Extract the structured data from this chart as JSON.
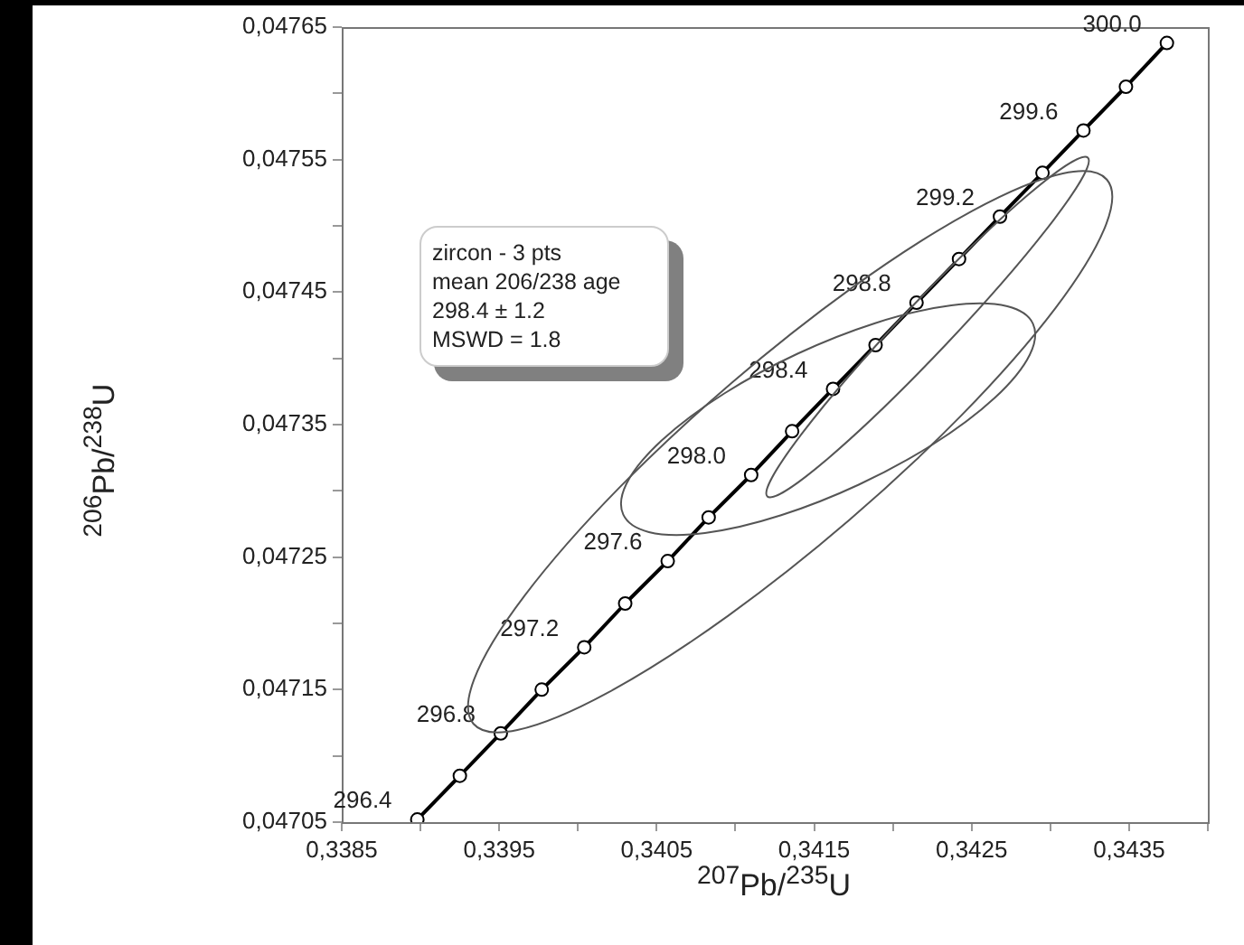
{
  "chart_data": {
    "type": "line",
    "xlabel": "$^{207}$Pb/$^{235}$U",
    "ylabel": "$^{206}$Pb/$^{238}$U",
    "xlim": [
      0.3385,
      0.344
    ],
    "ylim": [
      0.04705,
      0.04765
    ],
    "xticks": [
      {
        "value": 0.3385,
        "label": "0,3385"
      },
      {
        "value": 0.339,
        "label": null
      },
      {
        "value": 0.3395,
        "label": "0,3395"
      },
      {
        "value": 0.34,
        "label": null
      },
      {
        "value": 0.3405,
        "label": "0,3405"
      },
      {
        "value": 0.341,
        "label": null
      },
      {
        "value": 0.3415,
        "label": "0,3415"
      },
      {
        "value": 0.342,
        "label": null
      },
      {
        "value": 0.3425,
        "label": "0,3425"
      },
      {
        "value": 0.343,
        "label": null
      },
      {
        "value": 0.3435,
        "label": "0,3435"
      },
      {
        "value": 0.344,
        "label": null
      }
    ],
    "yticks": [
      {
        "value": 0.04705,
        "label": "0,04705"
      },
      {
        "value": 0.0471,
        "label": null
      },
      {
        "value": 0.04715,
        "label": "0,04715"
      },
      {
        "value": 0.0472,
        "label": null
      },
      {
        "value": 0.04725,
        "label": "0,04725"
      },
      {
        "value": 0.0473,
        "label": null
      },
      {
        "value": 0.04735,
        "label": "0,04735"
      },
      {
        "value": 0.0474,
        "label": null
      },
      {
        "value": 0.04745,
        "label": "0,04745"
      },
      {
        "value": 0.0475,
        "label": null
      },
      {
        "value": 0.04755,
        "label": "0,04755"
      },
      {
        "value": 0.0476,
        "label": null
      },
      {
        "value": 0.04765,
        "label": "0,04765"
      }
    ],
    "grid": false,
    "legend": false,
    "series": [
      {
        "type": "line",
        "color": "#000000",
        "marker": "circle",
        "x": [
          0.33898,
          0.33925,
          0.33951,
          0.33977,
          0.34004,
          0.3403,
          0.34057,
          0.34083,
          0.3411,
          0.34136,
          0.34162,
          0.34189,
          0.34215,
          0.34242,
          0.34268,
          0.34295,
          0.34321,
          0.34348,
          0.34374
        ],
        "values": [
          0.047052,
          0.047085,
          0.047117,
          0.04715,
          0.047182,
          0.047215,
          0.047247,
          0.04728,
          0.047312,
          0.047345,
          0.047377,
          0.04741,
          0.047442,
          0.047475,
          0.047507,
          0.04754,
          0.047572,
          0.047605,
          0.047638
        ]
      }
    ],
    "annotations": [
      {
        "text": "296.4",
        "x": 0.33898,
        "y": 0.047052
      },
      {
        "text": "296.8",
        "x": 0.33951,
        "y": 0.047117
      },
      {
        "text": "297.2",
        "x": 0.34004,
        "y": 0.047182
      },
      {
        "text": "297.6",
        "x": 0.34057,
        "y": 0.047247
      },
      {
        "text": "298.0",
        "x": 0.3411,
        "y": 0.047312
      },
      {
        "text": "298.4",
        "x": 0.34162,
        "y": 0.047377
      },
      {
        "text": "298.8",
        "x": 0.34215,
        "y": 0.047442
      },
      {
        "text": "299.2",
        "x": 0.34268,
        "y": 0.047507
      },
      {
        "text": "299.6",
        "x": 0.34321,
        "y": 0.047572
      },
      {
        "text": "300.0",
        "x": 0.34374,
        "y": 0.047638
      },
      "zircon - 3 pts\nmean 206/238 age\n298.4 ± 1.2\nMSWD = 1.8"
    ]
  }
}
